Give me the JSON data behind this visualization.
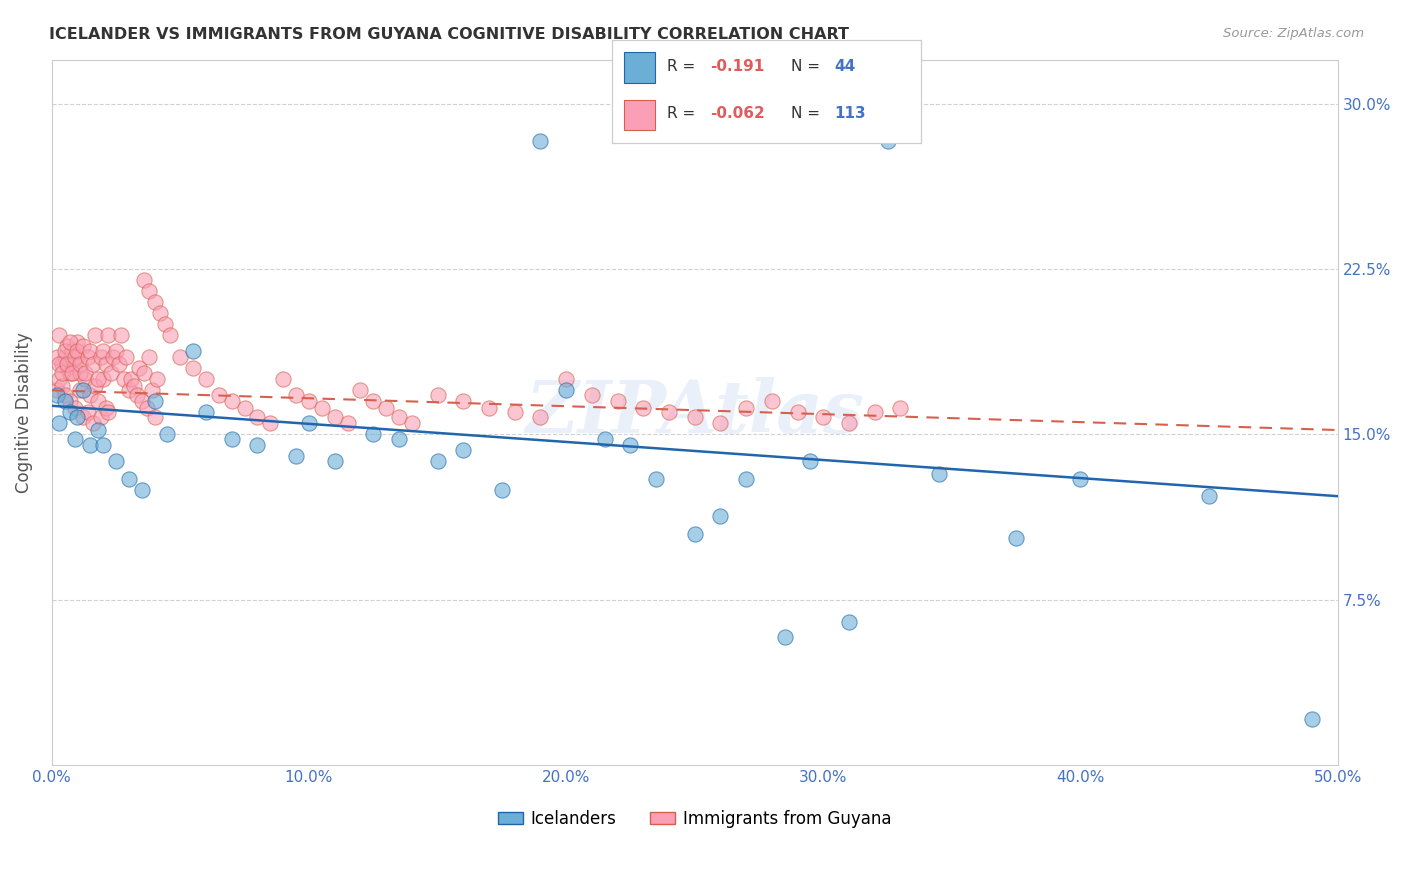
{
  "title": "ICELANDER VS IMMIGRANTS FROM GUYANA COGNITIVE DISABILITY CORRELATION CHART",
  "source": "Source: ZipAtlas.com",
  "ylabel": "Cognitive Disability",
  "watermark": "ZIPAtlas",
  "legend_label1": "Icelanders",
  "legend_label2": "Immigrants from Guyana",
  "r1": -0.191,
  "n1": 44,
  "r2": -0.062,
  "n2": 113,
  "xlim": [
    0.0,
    0.5
  ],
  "ylim": [
    0.0,
    0.32
  ],
  "xticks": [
    0.0,
    0.1,
    0.2,
    0.3,
    0.4,
    0.5
  ],
  "yticks": [
    0.075,
    0.15,
    0.225,
    0.3
  ],
  "xticklabels": [
    "0.0%",
    "10.0%",
    "20.0%",
    "30.0%",
    "40.0%",
    "50.0%"
  ],
  "yticklabels_right": [
    "7.5%",
    "15.0%",
    "22.5%",
    "30.0%"
  ],
  "color_blue": "#6baed6",
  "color_pink": "#fa9fb5",
  "color_blue_line": "#2166ac",
  "color_pink_line": "#d6604d",
  "blue_x": [
    0.002,
    0.003,
    0.005,
    0.007,
    0.009,
    0.01,
    0.012,
    0.015,
    0.018,
    0.02,
    0.025,
    0.03,
    0.035,
    0.04,
    0.045,
    0.055,
    0.06,
    0.07,
    0.08,
    0.095,
    0.1,
    0.11,
    0.125,
    0.135,
    0.15,
    0.16,
    0.175,
    0.19,
    0.2,
    0.215,
    0.225,
    0.235,
    0.25,
    0.26,
    0.27,
    0.285,
    0.295,
    0.31,
    0.325,
    0.345,
    0.375,
    0.4,
    0.45,
    0.49
  ],
  "blue_y": [
    0.168,
    0.155,
    0.165,
    0.16,
    0.148,
    0.158,
    0.17,
    0.145,
    0.152,
    0.145,
    0.138,
    0.13,
    0.125,
    0.165,
    0.15,
    0.188,
    0.16,
    0.148,
    0.145,
    0.14,
    0.155,
    0.138,
    0.15,
    0.148,
    0.138,
    0.143,
    0.125,
    0.283,
    0.17,
    0.148,
    0.145,
    0.13,
    0.105,
    0.113,
    0.13,
    0.058,
    0.138,
    0.065,
    0.283,
    0.132,
    0.103,
    0.13,
    0.122,
    0.021
  ],
  "pink_x": [
    0.002,
    0.003,
    0.004,
    0.005,
    0.006,
    0.007,
    0.008,
    0.009,
    0.01,
    0.011,
    0.012,
    0.013,
    0.014,
    0.015,
    0.016,
    0.017,
    0.018,
    0.019,
    0.02,
    0.021,
    0.022,
    0.003,
    0.004,
    0.005,
    0.006,
    0.007,
    0.008,
    0.009,
    0.01,
    0.011,
    0.036,
    0.038,
    0.04,
    0.042,
    0.044,
    0.046,
    0.05,
    0.055,
    0.06,
    0.065,
    0.07,
    0.075,
    0.08,
    0.085,
    0.09,
    0.095,
    0.1,
    0.105,
    0.11,
    0.115,
    0.12,
    0.125,
    0.13,
    0.135,
    0.14,
    0.15,
    0.16,
    0.17,
    0.18,
    0.19,
    0.2,
    0.21,
    0.22,
    0.23,
    0.24,
    0.25,
    0.26,
    0.27,
    0.28,
    0.29,
    0.3,
    0.31,
    0.32,
    0.33,
    0.002,
    0.003,
    0.004,
    0.005,
    0.006,
    0.007,
    0.008,
    0.009,
    0.01,
    0.011,
    0.012,
    0.013,
    0.014,
    0.015,
    0.016,
    0.017,
    0.018,
    0.019,
    0.02,
    0.021,
    0.022,
    0.023,
    0.024,
    0.025,
    0.026,
    0.027,
    0.028,
    0.029,
    0.03,
    0.031,
    0.032,
    0.033,
    0.034,
    0.035,
    0.036,
    0.037,
    0.038,
    0.039,
    0.04,
    0.041
  ],
  "pink_y": [
    0.17,
    0.175,
    0.172,
    0.168,
    0.18,
    0.165,
    0.178,
    0.162,
    0.185,
    0.17,
    0.158,
    0.175,
    0.16,
    0.168,
    0.155,
    0.172,
    0.165,
    0.158,
    0.175,
    0.162,
    0.16,
    0.195,
    0.182,
    0.185,
    0.19,
    0.178,
    0.188,
    0.182,
    0.192,
    0.178,
    0.22,
    0.215,
    0.21,
    0.205,
    0.2,
    0.195,
    0.185,
    0.18,
    0.175,
    0.168,
    0.165,
    0.162,
    0.158,
    0.155,
    0.175,
    0.168,
    0.165,
    0.162,
    0.158,
    0.155,
    0.17,
    0.165,
    0.162,
    0.158,
    0.155,
    0.168,
    0.165,
    0.162,
    0.16,
    0.158,
    0.175,
    0.168,
    0.165,
    0.162,
    0.16,
    0.158,
    0.155,
    0.162,
    0.165,
    0.16,
    0.158,
    0.155,
    0.16,
    0.162,
    0.185,
    0.182,
    0.178,
    0.188,
    0.182,
    0.192,
    0.178,
    0.185,
    0.188,
    0.182,
    0.19,
    0.178,
    0.185,
    0.188,
    0.182,
    0.195,
    0.175,
    0.185,
    0.188,
    0.182,
    0.195,
    0.178,
    0.185,
    0.188,
    0.182,
    0.195,
    0.175,
    0.185,
    0.17,
    0.175,
    0.172,
    0.168,
    0.18,
    0.165,
    0.178,
    0.162,
    0.185,
    0.17,
    0.158,
    0.175
  ],
  "blue_trend_x": [
    0.0,
    0.5
  ],
  "blue_trend_y": [
    0.163,
    0.122
  ],
  "pink_trend_x": [
    0.0,
    0.5
  ],
  "pink_trend_y": [
    0.17,
    0.152
  ]
}
